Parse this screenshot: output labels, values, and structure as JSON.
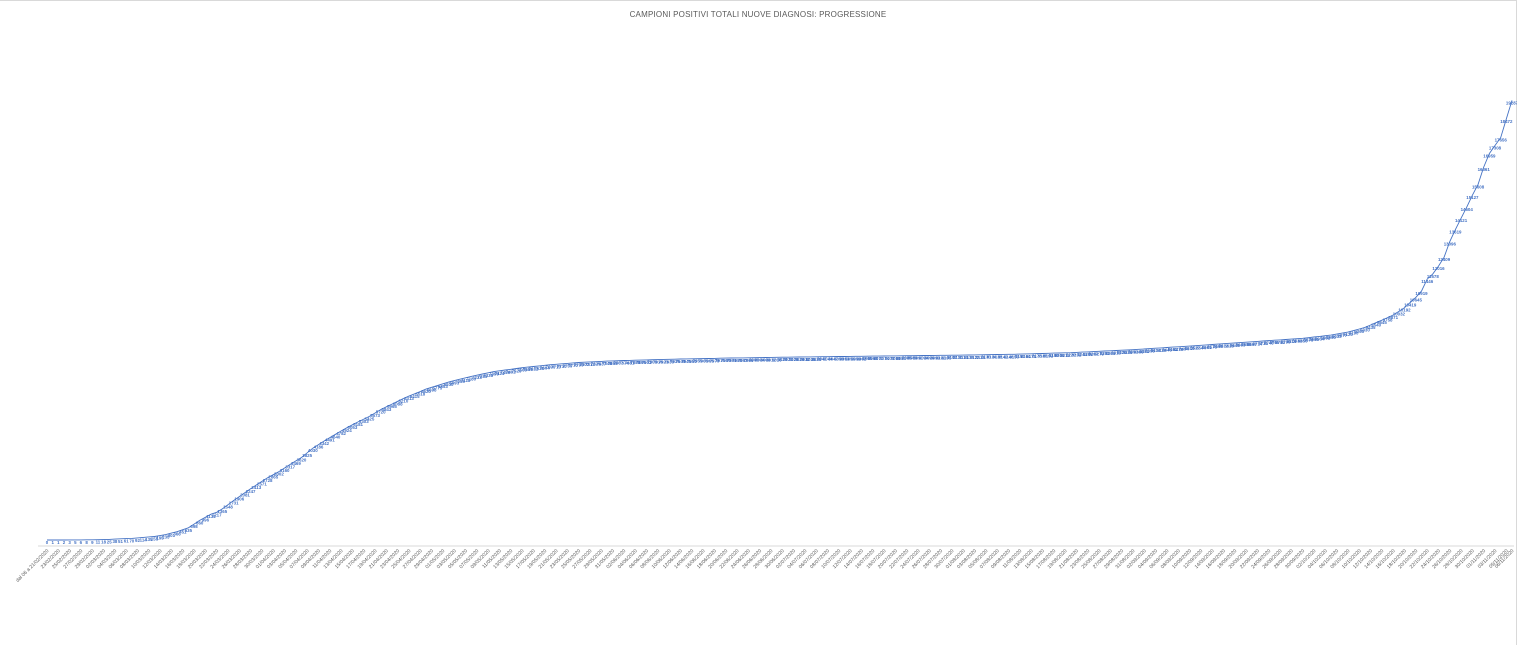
{
  "chart_data": {
    "type": "line",
    "title": "CAMPIONI POSITIVI TOTALI NUOVE DIAGNOSI: PROGRESSIONE",
    "xlabel": "",
    "ylabel": "",
    "x_start_date": "2020-02-21",
    "first_tick_label": "dal 06 a 21/02/2020",
    "tick_every_days": 2,
    "label_every_days": 1,
    "last_date": "2020-11-06",
    "ylim": [
      0,
      21500
    ],
    "grid": false,
    "legend": "none",
    "line_color": "#4472c4",
    "points": [
      [
        "2020-02-21",
        0
      ],
      [
        "2020-02-23",
        1
      ],
      [
        "2020-02-25",
        3
      ],
      [
        "2020-02-27",
        6
      ],
      [
        "2020-03-01",
        11
      ],
      [
        "2020-03-03",
        25
      ],
      [
        "2020-03-05",
        51
      ],
      [
        "2020-03-07",
        70
      ],
      [
        "2020-03-09",
        114
      ],
      [
        "2020-03-11",
        155
      ],
      [
        "2020-03-13",
        235
      ],
      [
        "2020-03-15",
        366
      ],
      [
        "2020-03-17",
        535
      ],
      [
        "2020-03-19",
        860
      ],
      [
        "2020-03-21",
        1132
      ],
      [
        "2020-03-22",
        1217
      ],
      [
        "2020-03-23",
        1365
      ],
      [
        "2020-03-25",
        1731
      ],
      [
        "2020-03-27",
        2081
      ],
      [
        "2020-03-29",
        2413
      ],
      [
        "2020-03-31",
        2728
      ],
      [
        "2020-04-02",
        3002
      ],
      [
        "2020-04-04",
        3317
      ],
      [
        "2020-04-06",
        3620
      ],
      [
        "2020-04-08",
        4030
      ],
      [
        "2020-04-10",
        4342
      ],
      [
        "2020-04-12",
        4640
      ],
      [
        "2020-04-14",
        4924
      ],
      [
        "2020-04-16",
        5181
      ],
      [
        "2020-04-18",
        5425
      ],
      [
        "2020-04-20",
        5720
      ],
      [
        "2020-04-24",
        6210
      ],
      [
        "2020-04-28",
        6620
      ],
      [
        "2020-05-02",
        6930
      ],
      [
        "2020-05-06",
        7180
      ],
      [
        "2020-05-10",
        7390
      ],
      [
        "2020-05-15",
        7560
      ],
      [
        "2020-05-20",
        7690
      ],
      [
        "2020-05-25",
        7790
      ],
      [
        "2020-05-31",
        7860
      ],
      [
        "2020-06-10",
        7930
      ],
      [
        "2020-06-20",
        7980
      ],
      [
        "2020-06-30",
        8020
      ],
      [
        "2020-07-10",
        8050
      ],
      [
        "2020-07-20",
        8080
      ],
      [
        "2020-07-31",
        8110
      ],
      [
        "2020-08-10",
        8150
      ],
      [
        "2020-08-20",
        8220
      ],
      [
        "2020-08-31",
        8350
      ],
      [
        "2020-09-10",
        8510
      ],
      [
        "2020-09-20",
        8680
      ],
      [
        "2020-09-30",
        8850
      ],
      [
        "2020-10-05",
        8990
      ],
      [
        "2020-10-08",
        9120
      ],
      [
        "2020-10-11",
        9330
      ],
      [
        "2020-10-14",
        9645
      ],
      [
        "2020-10-16",
        9871
      ],
      [
        "2020-10-18",
        10192
      ],
      [
        "2020-10-20",
        10645
      ],
      [
        "2020-10-21",
        10919
      ],
      [
        "2020-10-22",
        11446
      ],
      [
        "2020-10-23",
        11678
      ],
      [
        "2020-10-24",
        12016
      ],
      [
        "2020-10-25",
        12409
      ],
      [
        "2020-10-26",
        13096
      ],
      [
        "2020-10-27",
        13619
      ],
      [
        "2020-10-28",
        14121
      ],
      [
        "2020-10-29",
        14604
      ],
      [
        "2020-10-30",
        15127
      ],
      [
        "2020-10-31",
        15608
      ],
      [
        "2020-11-01",
        16361
      ],
      [
        "2020-11-02",
        16959
      ],
      [
        "2020-11-04",
        17656
      ],
      [
        "2020-11-06",
        19287
      ]
    ]
  }
}
